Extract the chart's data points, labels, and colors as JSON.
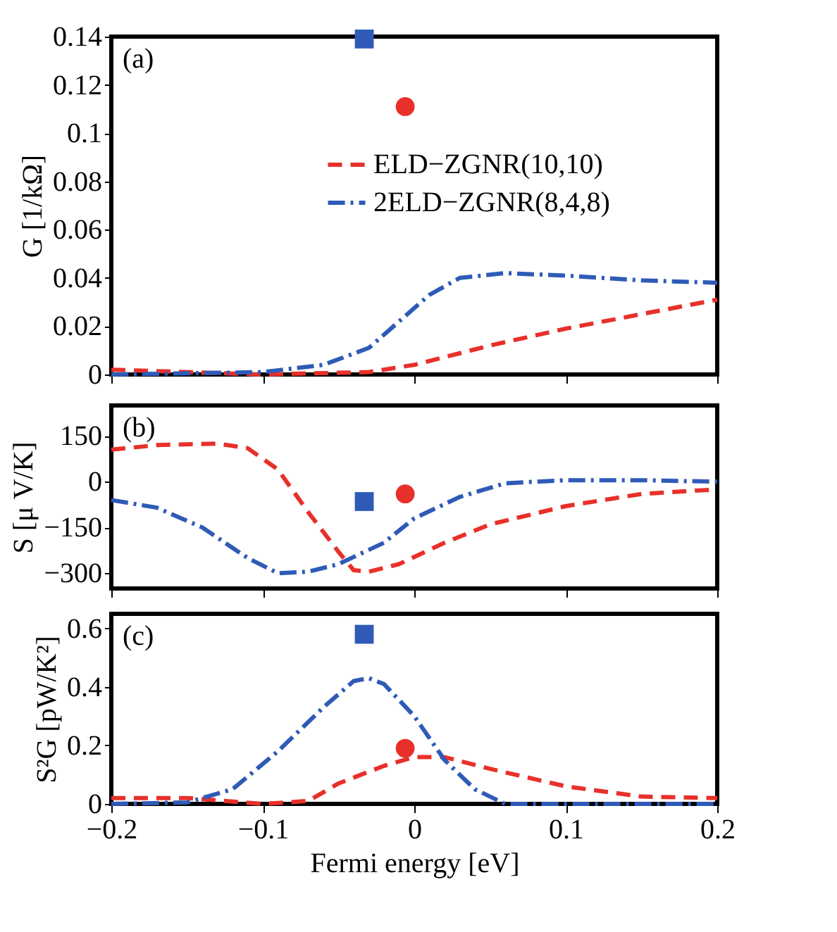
{
  "chart_data": [
    {
      "type": "line",
      "ylabel": "G [1/kΩ]",
      "annotations": [
        {
          "text": "(a)"
        }
      ],
      "xlim": [
        -0.2,
        0.2
      ],
      "xticks": [
        -0.2,
        -0.1,
        0,
        0.1,
        0.2
      ],
      "ylim": [
        0,
        0.14
      ],
      "yticks": [
        0,
        0.02,
        0.04,
        0.06,
        0.08,
        0.1,
        0.12,
        0.14
      ],
      "tick_labels": "y",
      "legend": "top right",
      "grid": false,
      "series": [
        {
          "name": "ELD−ZGNR(10,10)",
          "color": "#e8302a",
          "line_style": "dashed",
          "x": [
            -0.2,
            -0.1,
            -0.03,
            0,
            0.05,
            0.1,
            0.15,
            0.2
          ],
          "values": [
            0.002,
            0,
            0.001,
            0.004,
            0.012,
            0.019,
            0.025,
            0.031
          ]
        },
        {
          "name": "2ELD−ZGNR(8,4,8)",
          "color": "#2f5bb7",
          "line_style": "dashdot",
          "x": [
            -0.2,
            -0.1,
            -0.06,
            -0.03,
            -0.01,
            0.01,
            0.03,
            0.06,
            0.1,
            0.15,
            0.2
          ],
          "values": [
            0,
            0.001,
            0.004,
            0.011,
            0.022,
            0.033,
            0.04,
            0.042,
            0.041,
            0.039,
            0.038
          ]
        },
        {
          "type": "scatter",
          "marker": "square",
          "color": "#2f5bb7",
          "x": [
            -0.033
          ],
          "values": [
            0.139
          ]
        },
        {
          "type": "scatter",
          "marker": "circle",
          "color": "#e8302a",
          "x": [
            -0.006
          ],
          "values": [
            0.111
          ]
        }
      ]
    },
    {
      "type": "line",
      "ylabel": "S [μ V/K]",
      "annotations": [
        {
          "text": "(b)"
        }
      ],
      "xlim": [
        -0.2,
        0.2
      ],
      "xticks": [
        -0.2,
        -0.1,
        0,
        0.1,
        0.2
      ],
      "ylim": [
        -350,
        250
      ],
      "yticks": [
        -300,
        -150,
        0,
        150
      ],
      "tick_labels": "y",
      "grid": false,
      "series": [
        {
          "color": "#e8302a",
          "line_style": "dashed",
          "x": [
            -0.2,
            -0.17,
            -0.13,
            -0.11,
            -0.09,
            -0.07,
            -0.05,
            -0.04,
            -0.03,
            -0.01,
            0.02,
            0.05,
            0.1,
            0.15,
            0.2
          ],
          "values": [
            105,
            120,
            125,
            110,
            40,
            -100,
            -230,
            -290,
            -295,
            -270,
            -200,
            -140,
            -80,
            -40,
            -25
          ]
        },
        {
          "color": "#2f5bb7",
          "line_style": "dashdot",
          "x": [
            -0.2,
            -0.17,
            -0.14,
            -0.11,
            -0.09,
            -0.07,
            -0.05,
            -0.02,
            0,
            0.03,
            0.06,
            0.1,
            0.15,
            0.2
          ],
          "values": [
            -60,
            -85,
            -150,
            -250,
            -300,
            -295,
            -270,
            -200,
            -120,
            -50,
            -5,
            5,
            5,
            0
          ]
        },
        {
          "type": "scatter",
          "marker": "square",
          "color": "#2f5bb7",
          "x": [
            -0.033
          ],
          "values": [
            -65
          ]
        },
        {
          "type": "scatter",
          "marker": "circle",
          "color": "#e8302a",
          "x": [
            -0.006
          ],
          "values": [
            -40
          ]
        }
      ]
    },
    {
      "type": "line",
      "ylabel": "S²G [pW/K²]",
      "xlabel": "Fermi energy [eV]",
      "annotations": [
        {
          "text": "(c)"
        }
      ],
      "xlim": [
        -0.2,
        0.2
      ],
      "xticks": [
        -0.2,
        -0.1,
        0,
        0.1,
        0.2
      ],
      "ylim": [
        0,
        0.65
      ],
      "yticks": [
        0,
        0.2,
        0.4,
        0.6
      ],
      "grid": false,
      "series": [
        {
          "color": "#e8302a",
          "line_style": "dashed",
          "x": [
            -0.2,
            -0.15,
            -0.1,
            -0.07,
            -0.05,
            -0.02,
            0,
            0.02,
            0.05,
            0.1,
            0.15,
            0.2
          ],
          "values": [
            0.02,
            0.02,
            0,
            0.01,
            0.07,
            0.13,
            0.16,
            0.16,
            0.12,
            0.06,
            0.025,
            0.02
          ]
        },
        {
          "color": "#2f5bb7",
          "line_style": "dashdot",
          "x": [
            -0.2,
            -0.15,
            -0.12,
            -0.09,
            -0.06,
            -0.04,
            -0.03,
            -0.02,
            0,
            0.02,
            0.04,
            0.06,
            0.1,
            0.2
          ],
          "values": [
            0,
            0.005,
            0.05,
            0.18,
            0.33,
            0.42,
            0.43,
            0.41,
            0.3,
            0.15,
            0.05,
            0,
            0,
            0
          ]
        },
        {
          "type": "scatter",
          "marker": "square",
          "color": "#2f5bb7",
          "x": [
            -0.033
          ],
          "values": [
            0.58
          ]
        },
        {
          "type": "scatter",
          "marker": "circle",
          "color": "#e8302a",
          "x": [
            -0.006
          ],
          "values": [
            0.19
          ]
        }
      ]
    }
  ]
}
